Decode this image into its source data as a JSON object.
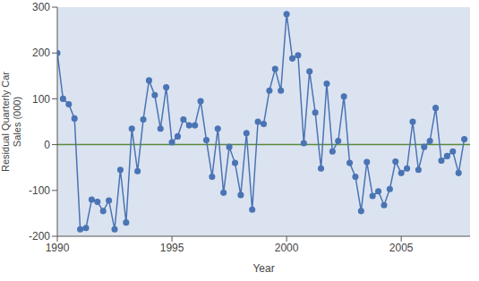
{
  "chart_data": {
    "type": "line",
    "x_label": "Year",
    "y_label": "Residual Quarterly Car Sales (000)",
    "x": [
      1990.0,
      1990.25,
      1990.5,
      1990.75,
      1991.0,
      1991.25,
      1991.5,
      1991.75,
      1992.0,
      1992.25,
      1992.5,
      1992.75,
      1993.0,
      1993.25,
      1993.5,
      1993.75,
      1994.0,
      1994.25,
      1994.5,
      1994.75,
      1995.0,
      1995.25,
      1995.5,
      1995.75,
      1996.0,
      1996.25,
      1996.5,
      1996.75,
      1997.0,
      1997.25,
      1997.5,
      1997.75,
      1998.0,
      1998.25,
      1998.5,
      1998.75,
      1999.0,
      1999.25,
      1999.5,
      1999.75,
      2000.0,
      2000.25,
      2000.5,
      2000.75,
      2001.0,
      2001.25,
      2001.5,
      2001.75,
      2002.0,
      2002.25,
      2002.5,
      2002.75,
      2003.0,
      2003.25,
      2003.5,
      2003.75,
      2004.0,
      2004.25,
      2004.5,
      2004.75,
      2005.0,
      2005.25,
      2005.5,
      2005.75,
      2006.0,
      2006.25,
      2006.5,
      2006.75,
      2007.0,
      2007.25,
      2007.5,
      2007.75
    ],
    "values": [
      200,
      100,
      88,
      57,
      -185,
      -182,
      -120,
      -125,
      -145,
      -122,
      -185,
      -55,
      -170,
      35,
      -58,
      55,
      140,
      108,
      35,
      125,
      5,
      18,
      55,
      42,
      42,
      95,
      10,
      -70,
      35,
      -105,
      -5,
      -40,
      -110,
      25,
      -142,
      50,
      45,
      118,
      165,
      118,
      285,
      188,
      195,
      3,
      160,
      70,
      -52,
      133,
      -15,
      8,
      105,
      -40,
      -70,
      -145,
      -38,
      -112,
      -102,
      -132,
      -97,
      -37,
      -62,
      -52,
      50,
      -55,
      -5,
      8,
      80,
      -35,
      -25,
      -15,
      -62,
      12
    ],
    "color": "#4a74b4",
    "marker": "circle",
    "xlim": [
      1990,
      2008
    ],
    "xticks": [
      1990,
      1995,
      2000,
      2005
    ],
    "ylim": [
      -200,
      300
    ],
    "yticks": [
      -200,
      -100,
      0,
      100,
      200,
      300
    ],
    "grid": false
  }
}
